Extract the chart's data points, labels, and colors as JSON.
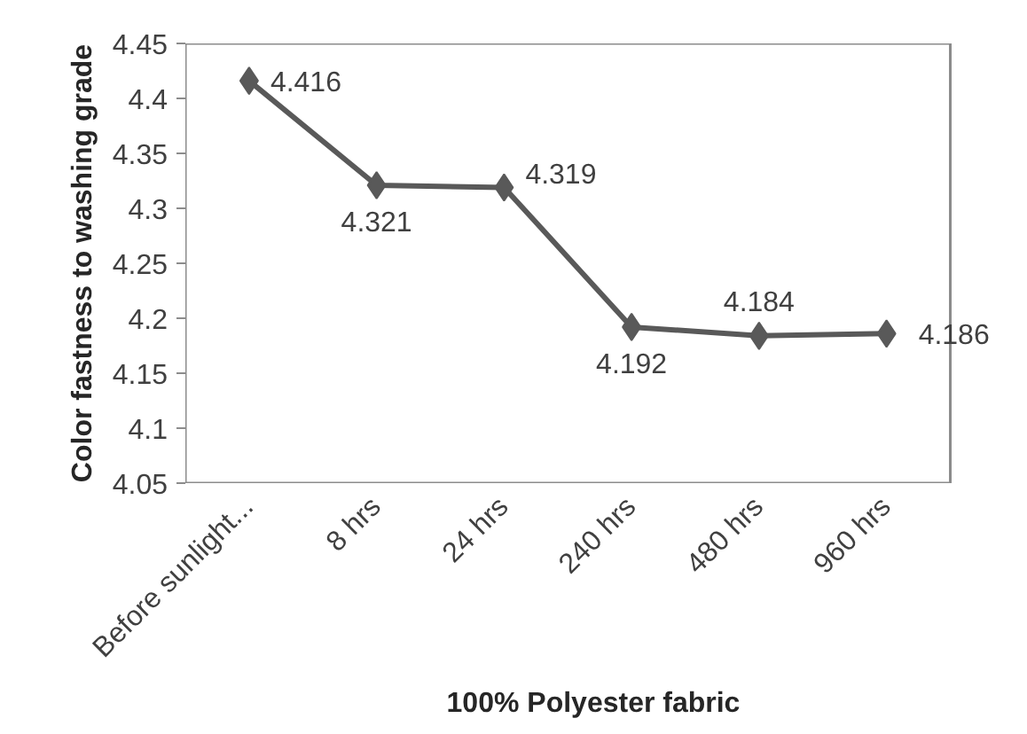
{
  "chart_data": {
    "type": "line",
    "xlabel": "100% Polyester fabric",
    "ylabel": "Color fastness to washing grade",
    "categories": [
      "Before sunlight...",
      "8 hrs",
      "24 hrs",
      "240 hrs",
      "480 hrs",
      "960 hrs"
    ],
    "series": [
      {
        "color": "#595959",
        "values": [
          4.416,
          4.321,
          4.319,
          4.192,
          4.184,
          4.186
        ]
      }
    ],
    "ylim": [
      4.05,
      4.45
    ],
    "yticks": [
      4.05,
      4.1,
      4.15,
      4.2,
      4.25,
      4.3,
      4.35,
      4.4,
      4.45
    ],
    "marker": "diamond",
    "line_style": "solid",
    "grid": false,
    "data_labels": true
  }
}
